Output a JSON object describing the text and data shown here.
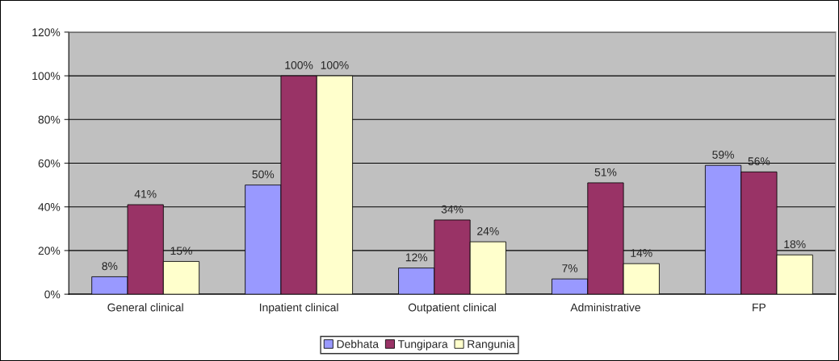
{
  "chart_data": {
    "type": "bar",
    "categories": [
      "General clinical",
      "Inpatient clinical",
      "Outpatient clinical",
      "Administrative",
      "FP"
    ],
    "series": [
      {
        "name": "Debhata",
        "color": "#9999ff",
        "values": [
          8,
          50,
          12,
          7,
          59
        ],
        "value_labels": [
          "8%",
          "50%",
          "12%",
          "7%",
          "59%"
        ]
      },
      {
        "name": "Tungipara",
        "color": "#993366",
        "values": [
          41,
          100,
          34,
          51,
          56
        ],
        "value_labels": [
          "41%",
          "100%",
          "34%",
          "51%",
          "56%"
        ]
      },
      {
        "name": "Rangunia",
        "color": "#ffffcc",
        "values": [
          15,
          100,
          24,
          14,
          18
        ],
        "value_labels": [
          "15%",
          "100%",
          "24%",
          "14%",
          "18%"
        ]
      }
    ],
    "ylim": [
      0,
      120
    ],
    "yticks": [
      {
        "value": 0,
        "label": "0%"
      },
      {
        "value": 20,
        "label": "20%"
      },
      {
        "value": 40,
        "label": "40%"
      },
      {
        "value": 60,
        "label": "60%"
      },
      {
        "value": 80,
        "label": "80%"
      },
      {
        "value": 100,
        "label": "100%"
      },
      {
        "value": 120,
        "label": "120%"
      }
    ],
    "grid": "y",
    "legend": "bottom"
  }
}
